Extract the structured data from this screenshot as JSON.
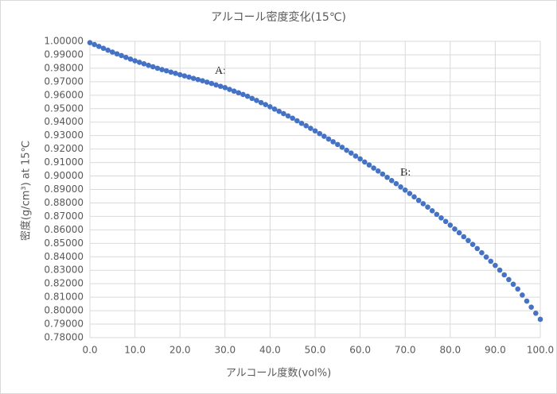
{
  "chart_data": {
    "type": "scatter",
    "title": "アルコール密度変化(15℃)",
    "x_label": "アルコール度数(vol%)",
    "y_label": "密度(g/cm³) at 15℃",
    "annotations": [
      "A:",
      "B:"
    ],
    "grid": true,
    "x": [
      0,
      1,
      2,
      3,
      4,
      5,
      6,
      7,
      8,
      9,
      10,
      11,
      12,
      13,
      14,
      15,
      16,
      17,
      18,
      19,
      20,
      21,
      22,
      23,
      24,
      25,
      26,
      27,
      28,
      29,
      30,
      31,
      32,
      33,
      34,
      35,
      36,
      37,
      38,
      39,
      40,
      41,
      42,
      43,
      44,
      45,
      46,
      47,
      48,
      49,
      50,
      51,
      52,
      53,
      54,
      55,
      56,
      57,
      58,
      59,
      60,
      61,
      62,
      63,
      64,
      65,
      66,
      67,
      68,
      69,
      70,
      71,
      72,
      73,
      74,
      75,
      76,
      77,
      78,
      79,
      80,
      81,
      82,
      83,
      84,
      85,
      86,
      87,
      88,
      89,
      90,
      91,
      92,
      93,
      94,
      95,
      96,
      97,
      98,
      99,
      100
    ],
    "series": [
      {
        "color": "#4472c4",
        "values": [
          0.999,
          0.9976,
          0.9962,
          0.9948,
          0.9934,
          0.992,
          0.9907,
          0.9894,
          0.9881,
          0.9868,
          0.9855,
          0.9844,
          0.9833,
          0.9822,
          0.9811,
          0.98,
          0.979,
          0.9781,
          0.9771,
          0.9762,
          0.9752,
          0.9743,
          0.9734,
          0.9725,
          0.9716,
          0.9707,
          0.9697,
          0.9687,
          0.9676,
          0.9666,
          0.9656,
          0.9643,
          0.963,
          0.9618,
          0.9605,
          0.9592,
          0.9576,
          0.9561,
          0.9545,
          0.953,
          0.9514,
          0.9497,
          0.948,
          0.9463,
          0.9446,
          0.9429,
          0.941,
          0.9391,
          0.9373,
          0.9354,
          0.9335,
          0.9315,
          0.9295,
          0.9274,
          0.9254,
          0.9234,
          0.9213,
          0.9191,
          0.917,
          0.9148,
          0.9127,
          0.9104,
          0.9082,
          0.9059,
          0.9037,
          0.9014,
          0.899,
          0.8966,
          0.8943,
          0.8919,
          0.8895,
          0.887,
          0.8845,
          0.8819,
          0.8794,
          0.8769,
          0.8742,
          0.8715,
          0.8689,
          0.8662,
          0.8635,
          0.8606,
          0.8578,
          0.8549,
          0.8521,
          0.8492,
          0.8461,
          0.843,
          0.8398,
          0.8367,
          0.8336,
          0.8301,
          0.8266,
          0.8231,
          0.8196,
          0.8161,
          0.8116,
          0.8071,
          0.8026,
          0.7981,
          0.7936
        ]
      }
    ],
    "xlim": [
      0,
      100
    ],
    "xticks": [
      {
        "value": 0,
        "label": "0.0"
      },
      {
        "value": 10,
        "label": "10.0"
      },
      {
        "value": 20,
        "label": "20.0"
      },
      {
        "value": 30,
        "label": "30.0"
      },
      {
        "value": 40,
        "label": "40.0"
      },
      {
        "value": 50,
        "label": "50.0"
      },
      {
        "value": 60,
        "label": "60.0"
      },
      {
        "value": 70,
        "label": "70.0"
      },
      {
        "value": 80,
        "label": "80.0"
      },
      {
        "value": 90,
        "label": "90.0"
      },
      {
        "value": 100,
        "label": "100.0"
      }
    ],
    "ylim": [
      0.78,
      1.0
    ],
    "yticks": [
      {
        "value": 0.78,
        "label": "0.78000"
      },
      {
        "value": 0.79,
        "label": "0.79000"
      },
      {
        "value": 0.8,
        "label": "0.80000"
      },
      {
        "value": 0.81,
        "label": "0.81000"
      },
      {
        "value": 0.82,
        "label": "0.82000"
      },
      {
        "value": 0.83,
        "label": "0.83000"
      },
      {
        "value": 0.84,
        "label": "0.84000"
      },
      {
        "value": 0.85,
        "label": "0.85000"
      },
      {
        "value": 0.86,
        "label": "0.86000"
      },
      {
        "value": 0.87,
        "label": "0.87000"
      },
      {
        "value": 0.88,
        "label": "0.88000"
      },
      {
        "value": 0.89,
        "label": "0.89000"
      },
      {
        "value": 0.9,
        "label": "0.90000"
      },
      {
        "value": 0.91,
        "label": "0.91000"
      },
      {
        "value": 0.92,
        "label": "0.92000"
      },
      {
        "value": 0.93,
        "label": "0.93000"
      },
      {
        "value": 0.94,
        "label": "0.94000"
      },
      {
        "value": 0.95,
        "label": "0.95000"
      },
      {
        "value": 0.96,
        "label": "0.96000"
      },
      {
        "value": 0.97,
        "label": "0.97000"
      },
      {
        "value": 0.98,
        "label": "0.98000"
      },
      {
        "value": 0.99,
        "label": "0.99000"
      },
      {
        "value": 1.0,
        "label": "1.00000"
      }
    ]
  }
}
